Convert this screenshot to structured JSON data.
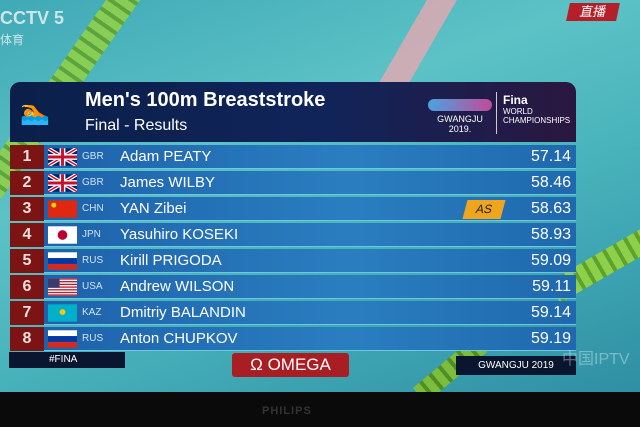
{
  "channel": {
    "logo": "CCTV 5",
    "sub": "体育",
    "live": "直播"
  },
  "header": {
    "title": "Men's 100m Breaststroke",
    "subtitle": "Final - Results",
    "event_logo": "GWANGJU 2019.",
    "org_name": "Fina",
    "org_line1": "WORLD",
    "org_line2": "CHAMPIONSHIPS"
  },
  "results": [
    {
      "rank": "1",
      "country": "GBR",
      "flag": "uk",
      "name": "Adam PEATY",
      "time": "57.14",
      "badge": ""
    },
    {
      "rank": "2",
      "country": "GBR",
      "flag": "uk",
      "name": "James WILBY",
      "time": "58.46",
      "badge": ""
    },
    {
      "rank": "3",
      "country": "CHN",
      "flag": "china",
      "name": "YAN Zibei",
      "time": "58.63",
      "badge": "AS"
    },
    {
      "rank": "4",
      "country": "JPN",
      "flag": "japan",
      "name": "Yasuhiro KOSEKI",
      "time": "58.93",
      "badge": ""
    },
    {
      "rank": "5",
      "country": "RUS",
      "flag": "russia",
      "name": "Kirill PRIGODA",
      "time": "59.09",
      "badge": ""
    },
    {
      "rank": "6",
      "country": "USA",
      "flag": "usa",
      "name": "Andrew WILSON",
      "time": "59.11",
      "badge": ""
    },
    {
      "rank": "7",
      "country": "KAZ",
      "flag": "kazakhstan",
      "name": "Dmitriy BALANDIN",
      "time": "59.14",
      "badge": ""
    },
    {
      "rank": "8",
      "country": "RUS",
      "flag": "russia",
      "name": "Anton CHUPKOV",
      "time": "59.19",
      "badge": ""
    }
  ],
  "footer": {
    "hashtag": "#FINA",
    "sponsor": "OMEGA",
    "omega_symbol": "Ω",
    "event": "GWANGJU 2019"
  },
  "watermark": "中国IPTV",
  "tv_brand": "PHILIPS"
}
